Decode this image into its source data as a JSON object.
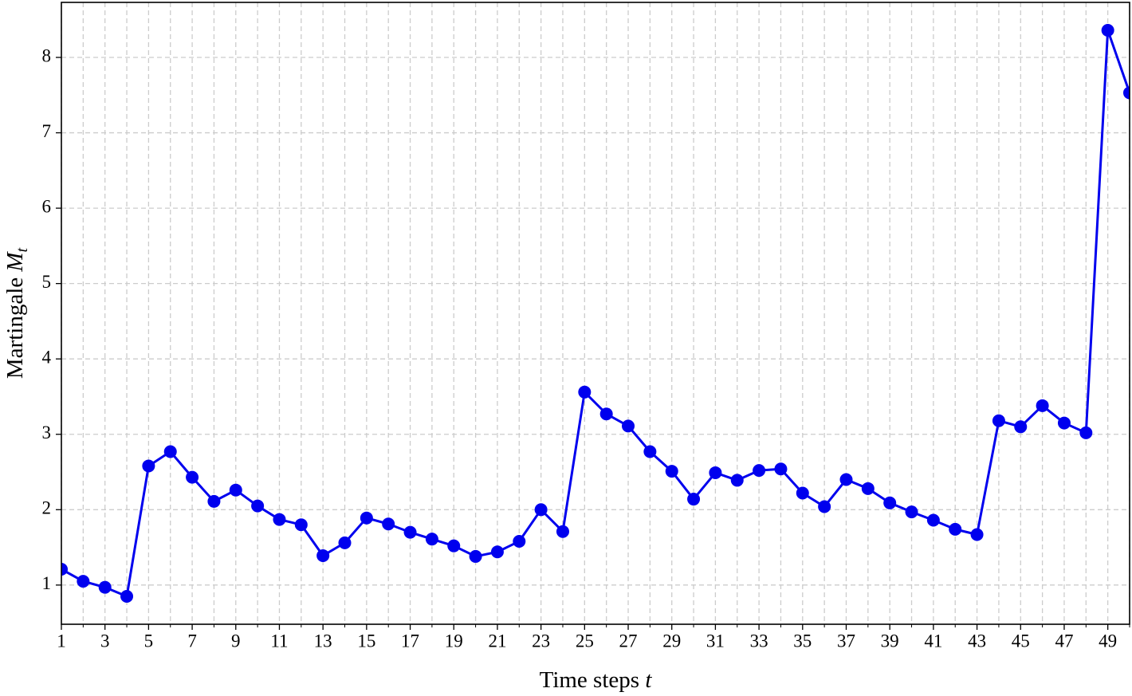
{
  "chart_data": {
    "type": "line",
    "x_label": {
      "text": "Time steps",
      "var": "t"
    },
    "y_label": {
      "text": "Martingale",
      "var": "M",
      "sub": "t"
    },
    "x": [
      1,
      2,
      3,
      4,
      5,
      6,
      7,
      8,
      9,
      10,
      11,
      12,
      13,
      14,
      15,
      16,
      17,
      18,
      19,
      20,
      21,
      22,
      23,
      24,
      25,
      26,
      27,
      28,
      29,
      30,
      31,
      32,
      33,
      34,
      35,
      36,
      37,
      38,
      39,
      40,
      41,
      42,
      43,
      44,
      45,
      46,
      47,
      48,
      49,
      50
    ],
    "series": [
      {
        "color": "#0000ee",
        "values": [
          1.21,
          1.05,
          0.97,
          0.85,
          2.58,
          2.77,
          2.43,
          2.11,
          2.26,
          2.05,
          1.87,
          1.8,
          1.39,
          1.56,
          1.89,
          1.81,
          1.7,
          1.61,
          1.52,
          1.38,
          1.44,
          1.58,
          2.0,
          1.71,
          3.56,
          3.27,
          3.11,
          2.77,
          2.51,
          2.14,
          2.49,
          2.39,
          2.52,
          2.54,
          2.22,
          2.04,
          2.4,
          2.28,
          2.09,
          1.97,
          1.86,
          1.74,
          1.67,
          3.18,
          3.1,
          3.38,
          3.15,
          3.02,
          8.36,
          7.53
        ]
      }
    ],
    "xlim": [
      1,
      50
    ],
    "ylim": [
      0.48,
      8.73
    ],
    "xticks": [
      1,
      3,
      5,
      7,
      9,
      11,
      13,
      15,
      17,
      19,
      21,
      23,
      25,
      27,
      29,
      31,
      33,
      35,
      37,
      39,
      41,
      43,
      45,
      47,
      49
    ],
    "xticks_minor": [
      2,
      4,
      6,
      8,
      10,
      12,
      14,
      16,
      18,
      20,
      22,
      24,
      26,
      28,
      30,
      32,
      34,
      36,
      38,
      40,
      42,
      44,
      46,
      48,
      50
    ],
    "yticks": [
      1,
      2,
      3,
      4,
      5,
      6,
      7,
      8
    ],
    "grid": true
  }
}
